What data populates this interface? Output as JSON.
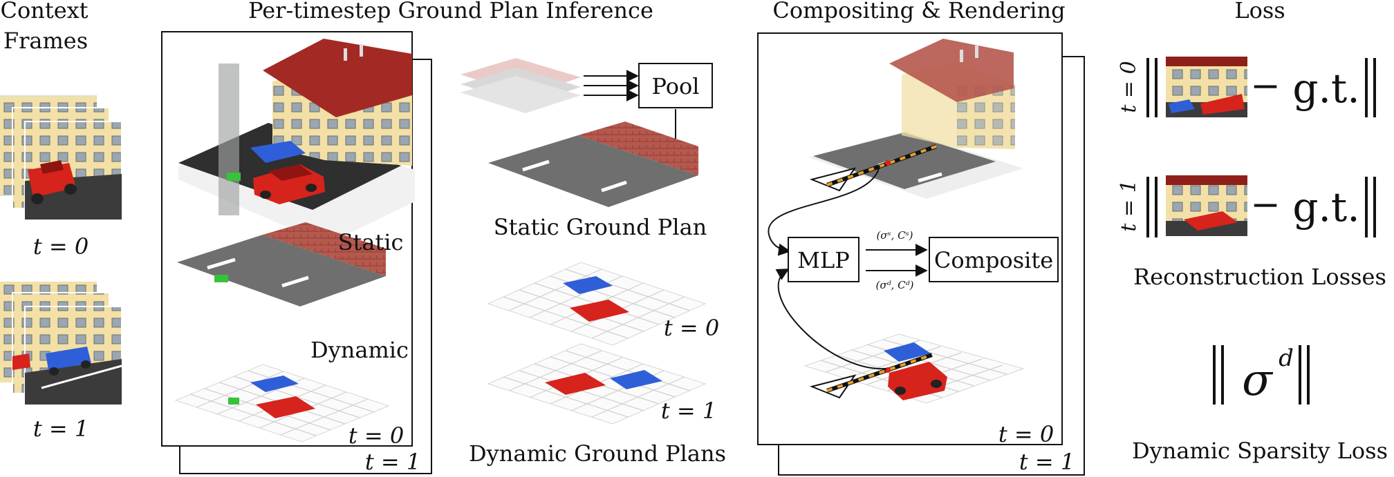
{
  "headers": {
    "context": [
      "Context",
      "Frames"
    ],
    "ground_plan": "Per-timestep Ground Plan Inference",
    "compositing": "Compositing & Rendering",
    "loss": "Loss"
  },
  "context_labels": [
    "t = 0",
    "t = 1"
  ],
  "panel_labels": {
    "static": "Static",
    "dynamic": "Dynamic",
    "t0": "t = 0",
    "t1": "t = 1"
  },
  "pool": {
    "label": "Pool"
  },
  "static_ground_plan": "Static Ground Plan",
  "dynamic_ground_plans": {
    "caption": "Dynamic Ground Plans",
    "t0": "t = 0",
    "t1": "t = 1"
  },
  "render": {
    "mlp": "MLP",
    "composite": "Composite",
    "static_out": "(σˢ, Cˢ)",
    "dynamic_out": "(σᵈ, Cᵈ)",
    "t0": "t = 0",
    "t1": "t = 1"
  },
  "loss": {
    "rows": [
      {
        "t": "t = 0",
        "gt": "g.t."
      },
      {
        "t": "t = 1",
        "gt": "g.t."
      }
    ],
    "minus": "−",
    "reconstruction": "Reconstruction Losses",
    "sparsity_symbol": "σ",
    "sparsity_sup": "d",
    "sparsity": "Dynamic Sparsity Loss"
  },
  "colors": {
    "road": "#6f6f6f",
    "sidewalk": "#b5584e",
    "roof": "#a32a24",
    "wall": "#f2e0a6",
    "car_blue": "#2f5fd8",
    "car_red": "#d6231c",
    "marker_green": "#38c23a",
    "ray_orange": "#e8a02a"
  }
}
